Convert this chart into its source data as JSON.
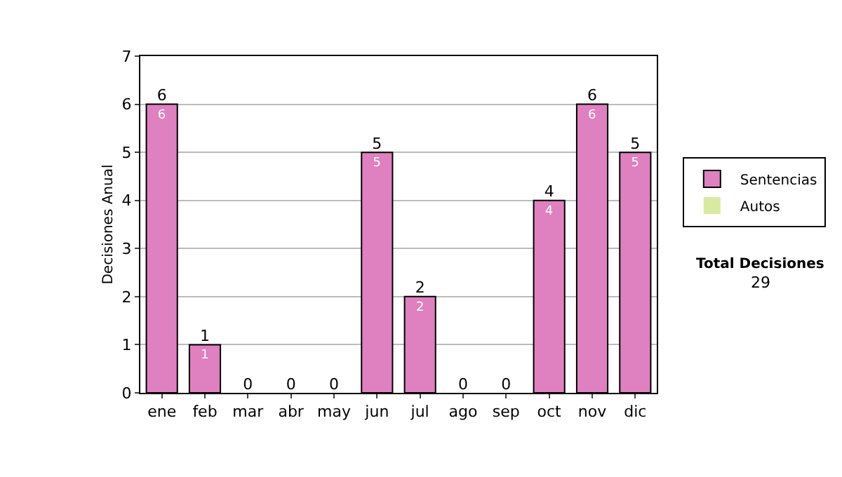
{
  "chart_data": {
    "type": "bar",
    "stacked": true,
    "ylabel": "Decisiones Anual",
    "categories": [
      "ene",
      "feb",
      "mar",
      "abr",
      "may",
      "jun",
      "jul",
      "ago",
      "sep",
      "oct",
      "nov",
      "dic"
    ],
    "series": [
      {
        "name": "Sentencias",
        "color": "#df80c0",
        "values": [
          6,
          1,
          0,
          0,
          0,
          5,
          2,
          0,
          0,
          4,
          6,
          5
        ],
        "value_labels": [
          "6",
          "1",
          null,
          null,
          null,
          "5",
          "2",
          null,
          null,
          "4",
          "6",
          "5"
        ]
      },
      {
        "name": "Autos",
        "color": "#d8eaa0",
        "values": [
          0,
          0,
          0,
          0,
          0,
          0,
          0,
          0,
          0,
          0,
          0,
          0
        ]
      }
    ],
    "totals": [
      "6",
      "1",
      "0",
      "0",
      "0",
      "5",
      "2",
      "0",
      "0",
      "4",
      "6",
      "5"
    ],
    "ylim": [
      0,
      7
    ],
    "yticks": [
      0,
      1,
      2,
      3,
      4,
      5,
      6,
      7
    ],
    "grid": "y",
    "legend": "right",
    "annotations": [
      "Total Decisiones",
      "29"
    ]
  }
}
